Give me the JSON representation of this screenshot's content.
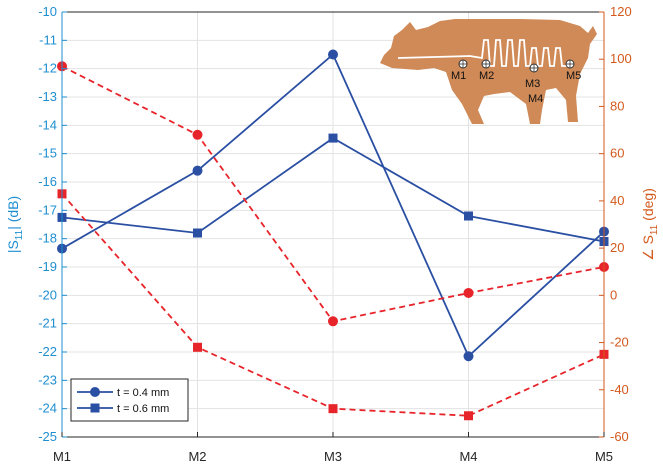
{
  "chart_data": {
    "type": "line",
    "categories": [
      "M1",
      "M2",
      "M3",
      "M4",
      "M5"
    ],
    "left_axis": {
      "label_main": "|S",
      "label_sub": "11",
      "label_tail": "| (dB)",
      "lim": [
        -25,
        -10
      ],
      "ticks": [
        -10,
        -11,
        -12,
        -13,
        -14,
        -15,
        -16,
        -17,
        -18,
        -19,
        -20,
        -21,
        -22,
        -23,
        -24,
        -25
      ],
      "color": "#1f8fd0"
    },
    "right_axis": {
      "label_main": "∠ S",
      "label_sub": "11",
      "label_tail": " (deg)",
      "lim": [
        -60,
        120
      ],
      "ticks": [
        120,
        100,
        80,
        60,
        40,
        20,
        0,
        -20,
        -40,
        -60
      ],
      "color": "#d35a1e"
    },
    "grid": true,
    "legend_position": "bottom-left",
    "series": [
      {
        "name": "t = 0.4 mm",
        "axis": "left",
        "marker": "circle",
        "style": "solid",
        "color": "#2a4fa3",
        "values": [
          -18.35,
          -15.6,
          -11.5,
          -22.15,
          -17.75
        ]
      },
      {
        "name": "t = 0.6 mm",
        "axis": "left",
        "marker": "square",
        "style": "solid",
        "color": "#2a4fa3",
        "values": [
          -17.25,
          -17.8,
          -14.45,
          -17.2,
          -18.1
        ]
      },
      {
        "axis": "right",
        "marker": "circle",
        "style": "dashed",
        "color": "#e8242b",
        "values": [
          97,
          68,
          -11,
          1,
          12
        ]
      },
      {
        "axis": "right",
        "marker": "square",
        "style": "dashed",
        "color": "#e8242b",
        "values": [
          43,
          -22,
          -48,
          -51,
          -25
        ]
      }
    ],
    "inset": {
      "fill": "#cf8a57",
      "markers": [
        "M1",
        "M2",
        "M3",
        "M4",
        "M5"
      ]
    }
  }
}
